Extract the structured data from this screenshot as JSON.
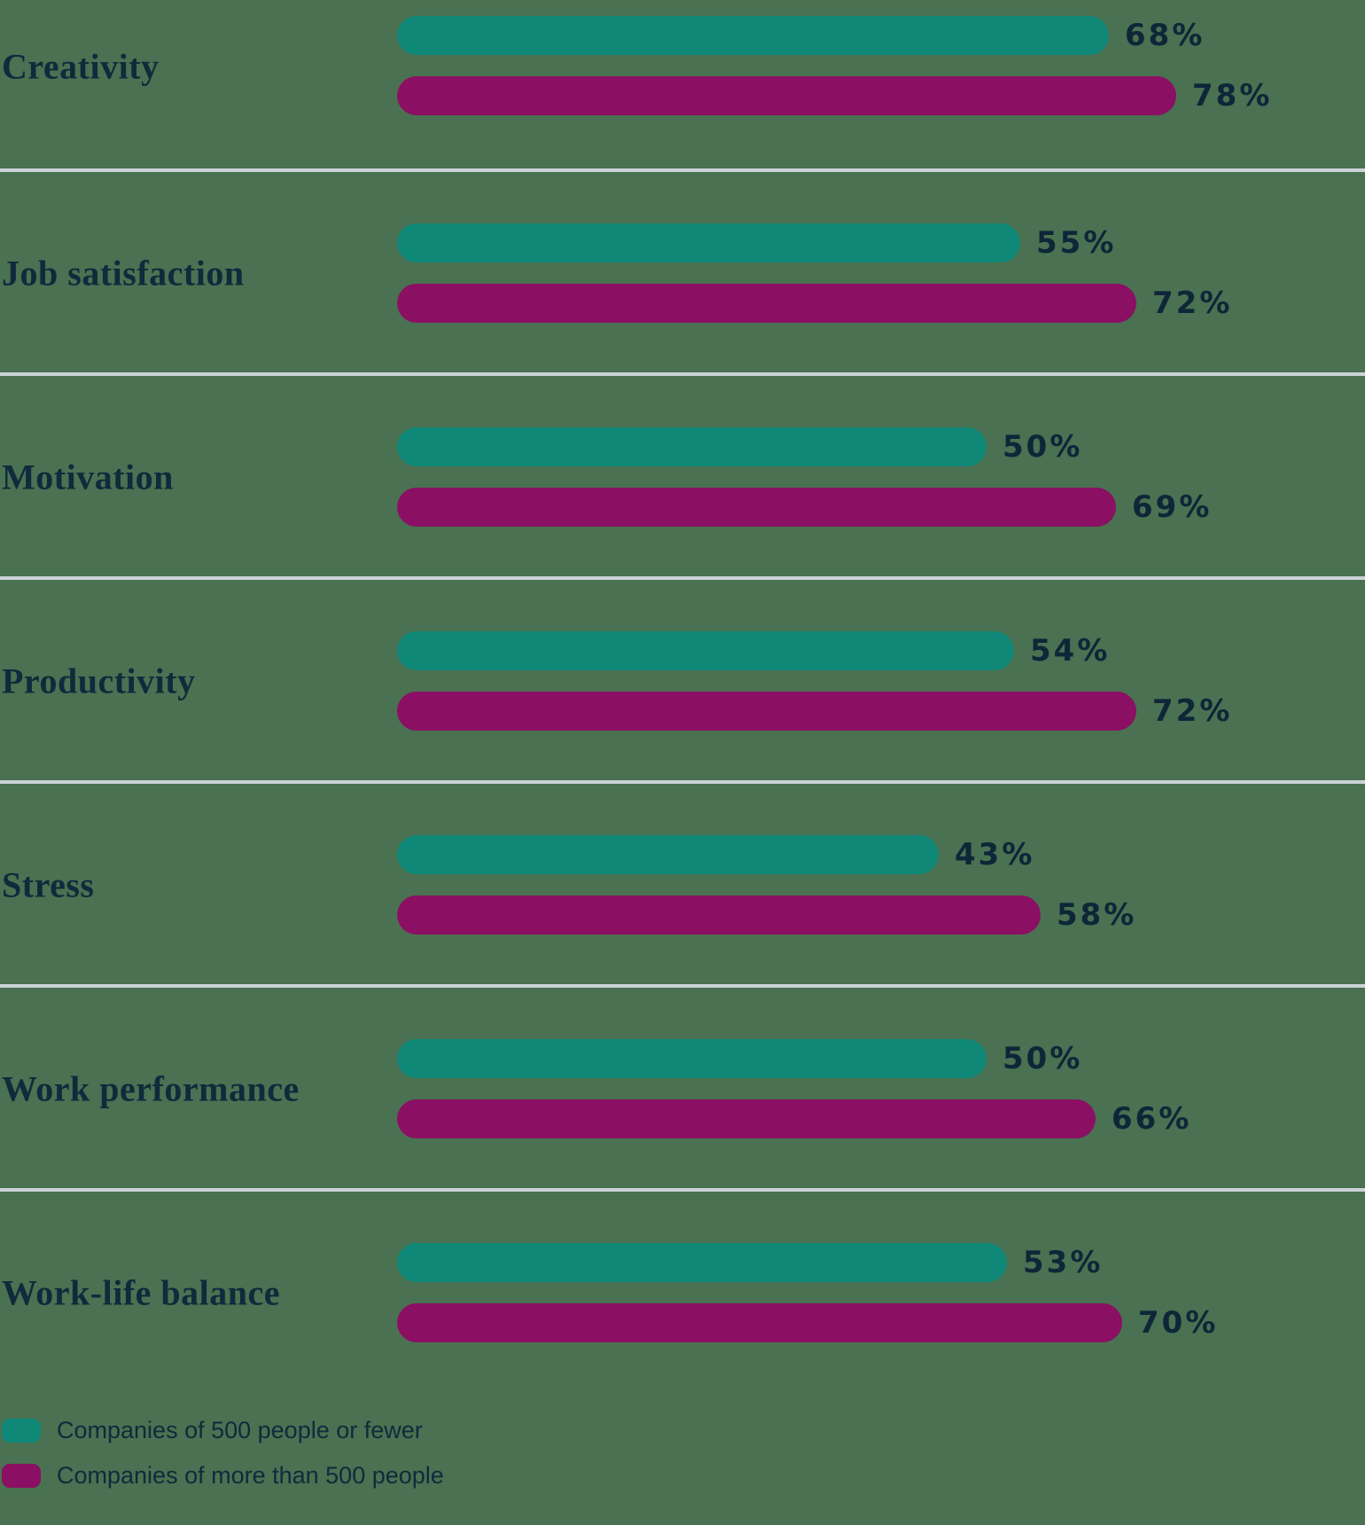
{
  "chart_data": {
    "type": "bar",
    "orientation": "horizontal",
    "title": "",
    "value_suffix": "%",
    "axis": "none",
    "grid": "horizontal row dividers between categories",
    "legend_position": "bottom-left",
    "categories": [
      "Creativity",
      "Job satisfaction",
      "Motivation",
      "Productivity",
      "Stress",
      "Work performance",
      "Work-life balance"
    ],
    "series": [
      {
        "name": "Companies of 500 people or fewer",
        "color": "#108878",
        "values": [
          68,
          55,
          50,
          54,
          43,
          50,
          53
        ]
      },
      {
        "name": "Companies of more than 500 people",
        "color": "#8B0F63",
        "values": [
          78,
          72,
          69,
          72,
          58,
          66,
          70
        ]
      }
    ],
    "value_labels": [
      [
        "68%",
        "55%",
        "50%",
        "54%",
        "43%",
        "50%",
        "53%"
      ],
      [
        "78%",
        "72%",
        "69%",
        "72%",
        "58%",
        "66%",
        "70%"
      ]
    ]
  },
  "colors": {
    "background": "#4A7151",
    "series_small_companies": "#108878",
    "series_large_companies": "#8B0F63",
    "text": "#102A3C",
    "divider": "#CCD3D6"
  }
}
